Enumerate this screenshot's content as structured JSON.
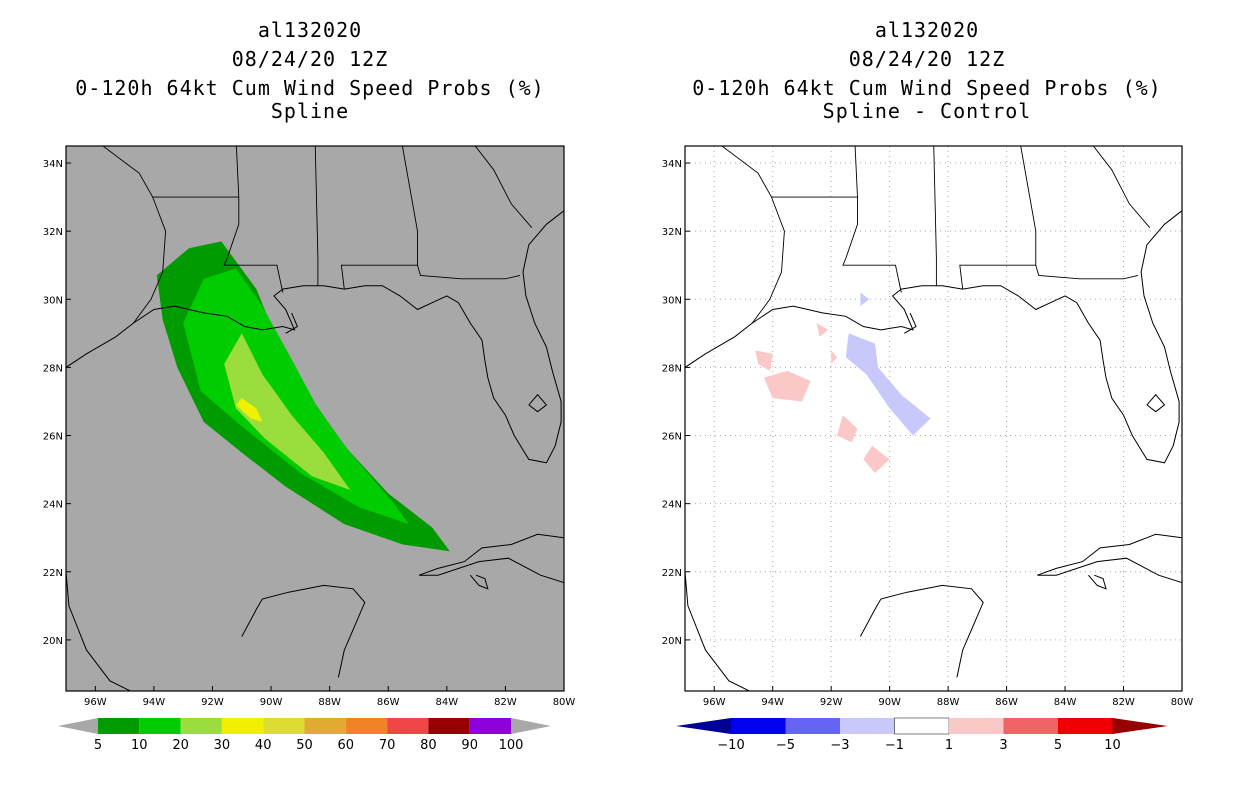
{
  "left_panel": {
    "title_lines": [
      "al132020",
      "08/24/20 12Z",
      "0-120h 64kt Cum Wind Speed Probs (%)",
      "Spline"
    ]
  },
  "right_panel": {
    "title_lines": [
      "al132020",
      "08/24/20 12Z",
      "0-120h 64kt Cum Wind Speed Probs (%)",
      "Spline - Control"
    ]
  },
  "colors": {
    "land_bg": "#a8a8a8",
    "c5": "#009b00",
    "c10": "#00cd00",
    "c20": "#9bdd3c",
    "c30": "#f0f000",
    "neg_light": "#c8c8fb",
    "pos_light": "#fbc8c8"
  },
  "chart_data": [
    {
      "type": "contour-map",
      "title": "al132020 08/24/20 12Z 0-120h 64kt Cum Wind Speed Probs (%) Spline",
      "xlim": [
        -97,
        -80
      ],
      "ylim": [
        18.5,
        34.5
      ],
      "x_ticks": [
        "96W",
        "94W",
        "92W",
        "90W",
        "88W",
        "86W",
        "84W",
        "82W",
        "80W"
      ],
      "y_ticks": [
        "20N",
        "22N",
        "24N",
        "26N",
        "28N",
        "30N",
        "32N",
        "34N"
      ],
      "colorbar_levels": [
        "5",
        "10",
        "20",
        "30",
        "40",
        "50",
        "60",
        "70",
        "80",
        "90",
        "100"
      ],
      "colorbar_colors": [
        "#009b00",
        "#00cd00",
        "#9bdd3c",
        "#f0f000",
        "#dcdc32",
        "#e1aa32",
        "#f08228",
        "#f04646",
        "#960000",
        "#8c00dc"
      ],
      "contours": [
        {
          "level": "5",
          "outline_lonlat": [
            [
              -91.7,
              31.7
            ],
            [
              -92.8,
              31.5
            ],
            [
              -93.9,
              30.7
            ],
            [
              -93.7,
              29.4
            ],
            [
              -93.2,
              28.0
            ],
            [
              -92.3,
              26.4
            ],
            [
              -91.0,
              25.5
            ],
            [
              -89.5,
              24.5
            ],
            [
              -87.5,
              23.4
            ],
            [
              -85.5,
              22.8
            ],
            [
              -83.9,
              22.6
            ],
            [
              -84.5,
              23.3
            ],
            [
              -86.0,
              24.3
            ],
            [
              -87.5,
              25.7
            ],
            [
              -88.7,
              27.2
            ],
            [
              -89.7,
              28.6
            ],
            [
              -90.5,
              30.3
            ]
          ]
        },
        {
          "level": "10",
          "outline_lonlat": [
            [
              -91.2,
              30.9
            ],
            [
              -92.3,
              30.6
            ],
            [
              -93.0,
              29.3
            ],
            [
              -92.4,
              27.3
            ],
            [
              -90.9,
              26.2
            ],
            [
              -89.0,
              24.9
            ],
            [
              -87.0,
              23.9
            ],
            [
              -85.3,
              23.4
            ],
            [
              -85.8,
              24.0
            ],
            [
              -87.3,
              25.5
            ],
            [
              -88.4,
              26.8
            ],
            [
              -89.4,
              28.4
            ],
            [
              -90.3,
              29.8
            ]
          ]
        },
        {
          "level": "20",
          "outline_lonlat": [
            [
              -91.0,
              29.0
            ],
            [
              -91.6,
              28.1
            ],
            [
              -91.2,
              26.8
            ],
            [
              -90.2,
              25.9
            ],
            [
              -88.6,
              24.8
            ],
            [
              -87.3,
              24.4
            ],
            [
              -88.2,
              25.5
            ],
            [
              -89.3,
              26.6
            ],
            [
              -90.3,
              27.8
            ]
          ]
        },
        {
          "level": "30",
          "outline_lonlat": [
            [
              -91.0,
              27.1
            ],
            [
              -90.5,
              26.8
            ],
            [
              -90.3,
              26.4
            ],
            [
              -90.7,
              26.5
            ],
            [
              -91.2,
              26.9
            ]
          ]
        }
      ]
    },
    {
      "type": "contour-map",
      "title": "al132020 08/24/20 12Z 0-120h 64kt Cum Wind Speed Probs (%) Spline - Control",
      "xlim": [
        -97,
        -80
      ],
      "ylim": [
        18.5,
        34.5
      ],
      "x_ticks": [
        "96W",
        "94W",
        "92W",
        "90W",
        "88W",
        "86W",
        "84W",
        "82W",
        "80W"
      ],
      "y_ticks": [
        "20N",
        "22N",
        "24N",
        "26N",
        "28N",
        "30N",
        "32N",
        "34N"
      ],
      "colorbar_levels": [
        "-10",
        "-5",
        "-3",
        "-1",
        "1",
        "3",
        "5",
        "10"
      ],
      "colorbar_colors": [
        "#000096",
        "#0000f0",
        "#6464f5",
        "#c8c8fb",
        "#ffffff",
        "#fbc8c8",
        "#f06464",
        "#f00000",
        "#960000"
      ],
      "contours": [
        {
          "level": "-3 to -1",
          "outline_lonlat": [
            [
              -91.4,
              29.0
            ],
            [
              -90.5,
              28.7
            ],
            [
              -90.4,
              28.0
            ],
            [
              -89.6,
              27.2
            ],
            [
              -88.6,
              26.5
            ],
            [
              -89.2,
              26.0
            ],
            [
              -90.0,
              26.8
            ],
            [
              -90.8,
              27.8
            ],
            [
              -91.5,
              28.3
            ]
          ]
        },
        {
          "level": "-3 to -1",
          "outline_lonlat": [
            [
              -91.0,
              30.2
            ],
            [
              -90.7,
              30.0
            ],
            [
              -91.0,
              29.8
            ]
          ]
        },
        {
          "level": "1 to 3",
          "outline_lonlat": [
            [
              -94.3,
              27.7
            ],
            [
              -93.5,
              27.9
            ],
            [
              -92.7,
              27.6
            ],
            [
              -93.0,
              27.0
            ],
            [
              -94.0,
              27.1
            ]
          ]
        },
        {
          "level": "1 to 3",
          "outline_lonlat": [
            [
              -94.6,
              28.5
            ],
            [
              -94.0,
              28.4
            ],
            [
              -94.1,
              27.9
            ],
            [
              -94.5,
              28.1
            ]
          ]
        },
        {
          "level": "1 to 3",
          "outline_lonlat": [
            [
              -92.5,
              29.3
            ],
            [
              -92.1,
              29.1
            ],
            [
              -92.4,
              28.9
            ]
          ]
        },
        {
          "level": "1 to 3",
          "outline_lonlat": [
            [
              -92.0,
              28.5
            ],
            [
              -91.8,
              28.3
            ],
            [
              -92.0,
              28.1
            ]
          ]
        },
        {
          "level": "1 to 3",
          "outline_lonlat": [
            [
              -91.6,
              26.6
            ],
            [
              -91.1,
              26.2
            ],
            [
              -91.3,
              25.8
            ],
            [
              -91.8,
              26.0
            ]
          ]
        },
        {
          "level": "1 to 3",
          "outline_lonlat": [
            [
              -90.6,
              25.7
            ],
            [
              -90.0,
              25.3
            ],
            [
              -90.5,
              24.9
            ],
            [
              -90.9,
              25.3
            ]
          ]
        }
      ]
    }
  ]
}
